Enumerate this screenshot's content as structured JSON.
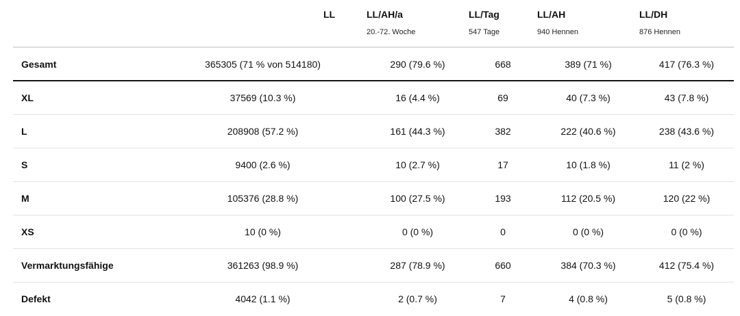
{
  "table": {
    "columns": [
      {
        "title": "",
        "subtitle": ""
      },
      {
        "title": "LL",
        "subtitle": ""
      },
      {
        "title": "LL/AH/a",
        "subtitle": "20.-72. Woche"
      },
      {
        "title": "LL/Tag",
        "subtitle": "547 Tage"
      },
      {
        "title": "LL/AH",
        "subtitle": "940 Hennen"
      },
      {
        "title": "LL/DH",
        "subtitle": "876 Hennen"
      }
    ],
    "rows": [
      {
        "label": "Gesamt",
        "cells": [
          "365305 (71 % von 514180)",
          "290 (79.6 %)",
          "668",
          "389 (71 %)",
          "417 (76.3 %)"
        ]
      },
      {
        "label": "XL",
        "cells": [
          "37569 (10.3 %)",
          "16 (4.4 %)",
          "69",
          "40 (7.3 %)",
          "43 (7.8 %)"
        ]
      },
      {
        "label": "L",
        "cells": [
          "208908 (57.2 %)",
          "161 (44.3 %)",
          "382",
          "222 (40.6 %)",
          "238 (43.6 %)"
        ]
      },
      {
        "label": "S",
        "cells": [
          "9400 (2.6 %)",
          "10 (2.7 %)",
          "17",
          "10 (1.8 %)",
          "11 (2 %)"
        ]
      },
      {
        "label": "M",
        "cells": [
          "105376 (28.8 %)",
          "100 (27.5 %)",
          "193",
          "112 (20.5 %)",
          "120 (22 %)"
        ]
      },
      {
        "label": "XS",
        "cells": [
          "10 (0 %)",
          "0 (0 %)",
          "0",
          "0 (0 %)",
          "0 (0 %)"
        ]
      },
      {
        "label": "Vermarktungsfähige",
        "cells": [
          "361263 (98.9 %)",
          "287 (78.9 %)",
          "660",
          "384 (70.3 %)",
          "412 (75.4 %)"
        ]
      },
      {
        "label": "Defekt",
        "cells": [
          "4042 (1.1 %)",
          "2 (0.7 %)",
          "7",
          "4 (0.8 %)",
          "5 (0.8 %)"
        ]
      }
    ]
  }
}
